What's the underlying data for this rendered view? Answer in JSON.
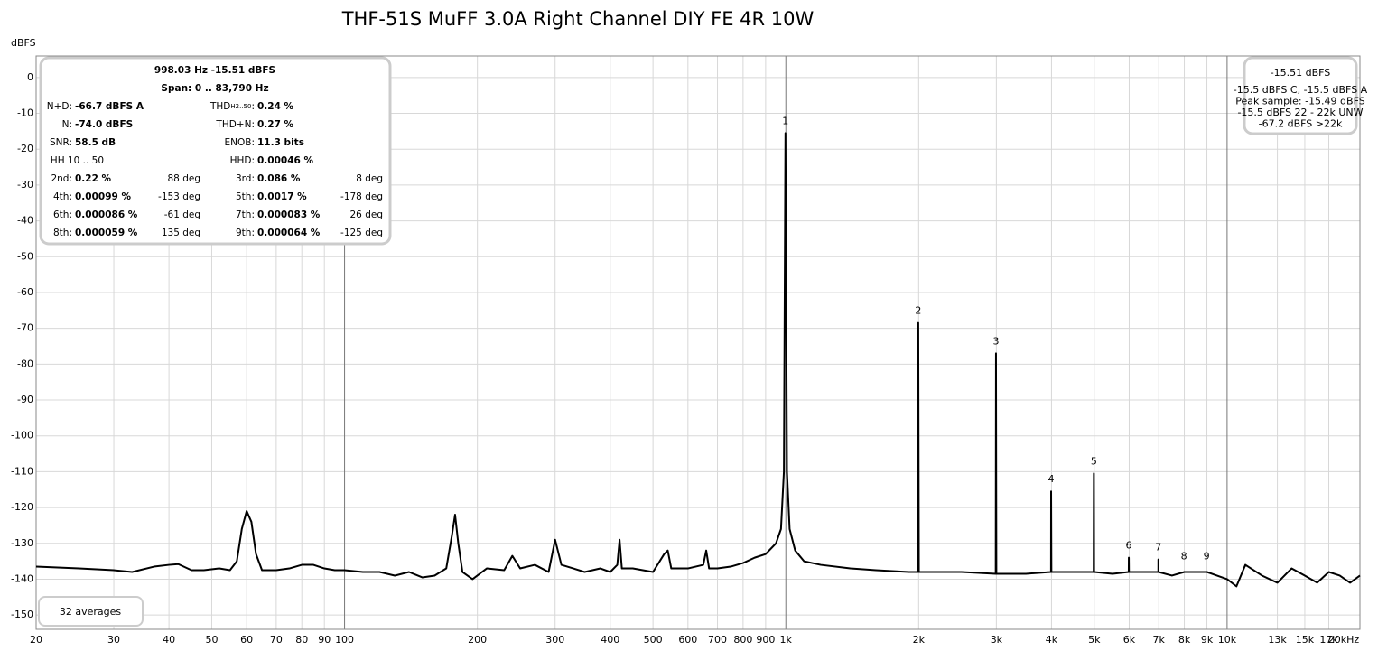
{
  "chart_data": {
    "type": "line",
    "title": "THF-51S MuFF 3.0A Right Channel DIY FE 4R 10W",
    "y_label": "dBFS",
    "log_x": true,
    "grid": true,
    "color": "#000000",
    "xlim": [
      20,
      20000
    ],
    "ylim": [
      -154,
      6
    ],
    "xticks": [
      20,
      30,
      40,
      50,
      60,
      70,
      80,
      90,
      100,
      200,
      300,
      400,
      500,
      600,
      700,
      800,
      900,
      {
        "value": 1000,
        "label": "1k"
      },
      {
        "value": 2000,
        "label": "2k"
      },
      {
        "value": 3000,
        "label": "3k"
      },
      {
        "value": 4000,
        "label": "4k"
      },
      {
        "value": 5000,
        "label": "5k"
      },
      {
        "value": 6000,
        "label": "6k"
      },
      {
        "value": 7000,
        "label": "7k"
      },
      {
        "value": 8000,
        "label": "8k"
      },
      {
        "value": 9000,
        "label": "9k"
      },
      {
        "value": 10000,
        "label": "10k"
      },
      {
        "value": 13000,
        "label": "13k"
      },
      {
        "value": 15000,
        "label": "15k"
      },
      {
        "value": 17000,
        "label": "17k"
      },
      {
        "value": 20000,
        "label": "20kHz"
      }
    ],
    "yticks": [
      0,
      -10,
      -20,
      -30,
      -40,
      -50,
      -60,
      -70,
      -80,
      -90,
      -100,
      -110,
      -120,
      -130,
      -140,
      -150
    ],
    "x": [
      20,
      25,
      30,
      33,
      37,
      40,
      42,
      45,
      48,
      52,
      55,
      57,
      58.5,
      60,
      61.5,
      63,
      65,
      70,
      75,
      80,
      85,
      90,
      95,
      100,
      110,
      120,
      130,
      140,
      150,
      160,
      170,
      175,
      178,
      181,
      185,
      195,
      210,
      230,
      240,
      250,
      270,
      290,
      300,
      310,
      330,
      350,
      380,
      400,
      415,
      420,
      425,
      450,
      500,
      530,
      540,
      550,
      600,
      650,
      660,
      670,
      700,
      750,
      800,
      850,
      900,
      950,
      975,
      990,
      998,
      1006,
      1020,
      1050,
      1100,
      1200,
      1400,
      1600,
      1900,
      1990,
      1996,
      2002,
      2500,
      2990,
      2994,
      3000,
      3500,
      3990,
      3992,
      3998,
      4500,
      4985,
      4990,
      4996,
      5500,
      5985,
      5988,
      5992,
      6500,
      6985,
      6986,
      6992,
      7500,
      8000,
      9000,
      10000,
      10500,
      11000,
      12000,
      13000,
      14000,
      15000,
      16000,
      17000,
      18000,
      19000,
      20000
    ],
    "series": [
      {
        "color": "#000000",
        "values": [
          -136.5,
          -137,
          -137.5,
          -138,
          -136.5,
          -136,
          -135.8,
          -137.5,
          -137.5,
          -137,
          -137.5,
          -135,
          -126,
          -121,
          -124,
          -133,
          -137.5,
          -137.5,
          -137,
          -136,
          -136,
          -137,
          -137.5,
          -137.5,
          -138,
          -138,
          -139,
          -138,
          -139.5,
          -139,
          -137,
          -128,
          -122,
          -130,
          -138,
          -140,
          -137,
          -137.5,
          -133.5,
          -137,
          -136,
          -138,
          -129,
          -136,
          -137,
          -138,
          -137,
          -138,
          -136,
          -129,
          -137,
          -137,
          -138,
          -133,
          -132,
          -137,
          -137,
          -136,
          -132,
          -137,
          -137,
          -136.5,
          -135.5,
          -134,
          -133,
          -130,
          -126,
          -110,
          -15.5,
          -110,
          -126,
          -132,
          -135,
          -136,
          -137,
          -137.5,
          -138,
          -138,
          -68.5,
          -138,
          -138,
          -138.5,
          -77,
          -138.5,
          -138.5,
          -138,
          -115.5,
          -138,
          -138,
          -138,
          -110.5,
          -138,
          -138.5,
          -138,
          -134,
          -138,
          -138,
          -138,
          -134.5,
          -138,
          -139,
          -138,
          -138,
          -140,
          -142,
          -136,
          -139,
          -141,
          -137,
          -139,
          -141,
          -138,
          -139,
          -141,
          -139
        ]
      }
    ],
    "harmonics": [
      {
        "label": "1",
        "x": 998,
        "y": -15.5
      },
      {
        "label": "2",
        "x": 1996,
        "y": -68.5
      },
      {
        "label": "3",
        "x": 2994,
        "y": -77
      },
      {
        "label": "4",
        "x": 3992,
        "y": -115.5
      },
      {
        "label": "5",
        "x": 4990,
        "y": -110.5
      },
      {
        "label": "6",
        "x": 5988,
        "y": -134
      },
      {
        "label": "7",
        "x": 6986,
        "y": -134.5
      },
      {
        "label": "8",
        "x": 7985,
        "y": -137
      },
      {
        "label": "9",
        "x": 8983,
        "y": -137
      }
    ],
    "info": {
      "header": [
        "998.03 Hz  -15.51 dBFS",
        "Span: 0 .. 83,790 Hz"
      ],
      "rows": [
        {
          "left": {
            "label": "N+D:",
            "value": "-66.7 dBFS A"
          },
          "right": {
            "label": "THD",
            "sub": "H2..50",
            "suffix": ":",
            "value": "0.24 %"
          }
        },
        {
          "left": {
            "label": "N:",
            "value": "-74.0 dBFS"
          },
          "right": {
            "label": "THD+N:",
            "value": "0.27 %"
          }
        },
        {
          "left": {
            "label": "SNR:",
            "value": "58.5 dB"
          },
          "right": {
            "label": "ENOB:",
            "value": "11.3 bits"
          }
        },
        {
          "left": {
            "label": "HH 10 .. 50"
          },
          "right": {
            "label": "HHD:",
            "value": "0.00046 %"
          }
        },
        {
          "left": {
            "label": "2nd:",
            "value": "0.22 %",
            "phase": "88 deg"
          },
          "right": {
            "label": "3rd:",
            "value": "0.086 %",
            "phase": "8 deg"
          }
        },
        {
          "left": {
            "label": "4th:",
            "value": "0.00099 %",
            "phase": "-153 deg"
          },
          "right": {
            "label": "5th:",
            "value": "0.0017 %",
            "phase": "-178 deg"
          }
        },
        {
          "left": {
            "label": "6th:",
            "value": "0.000086 %",
            "phase": "-61 deg"
          },
          "right": {
            "label": "7th:",
            "value": "0.000083 %",
            "phase": "26 deg"
          }
        },
        {
          "left": {
            "label": "8th:",
            "value": "0.000059 %",
            "phase": "135 deg"
          },
          "right": {
            "label": "9th:",
            "value": "0.000064 %",
            "phase": "-125 deg"
          }
        }
      ]
    },
    "level_box": {
      "main": "-15.51 dBFS",
      "lines": [
        "-15.5 dBFS C, -15.5 dBFS A",
        "Peak sample: -15.49 dBFS",
        "-15.5 dBFS 22 - 22k UNW",
        "-67.2 dBFS >22k"
      ]
    },
    "averages": "32 averages"
  }
}
